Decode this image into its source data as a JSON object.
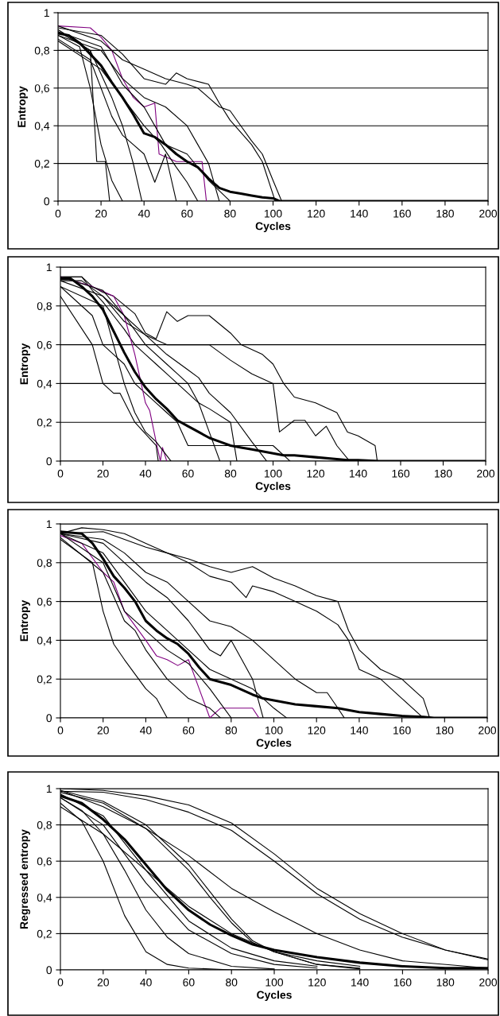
{
  "chart_data": [
    {
      "type": "line",
      "xlabel": "Cycles",
      "ylabel": "Entropy",
      "xlim": [
        0,
        200
      ],
      "ylim": [
        0,
        1
      ],
      "xticks": [
        0,
        20,
        40,
        60,
        80,
        100,
        120,
        140,
        160,
        180,
        200
      ],
      "yticks": [
        0,
        {
          "value": 0.2,
          "label": "0,2"
        },
        {
          "value": 0.4,
          "label": "0,4"
        },
        {
          "value": 0.6,
          "label": "0,6"
        },
        {
          "value": 0.8,
          "label": "0,8"
        },
        1
      ],
      "grid": "y",
      "marker": "none",
      "line_style": "solid",
      "series": [
        {
          "color": "#000000",
          "x": [
            0,
            5,
            10,
            15,
            20,
            25,
            30,
            35,
            40,
            45,
            50,
            55,
            60,
            65,
            70,
            75,
            80,
            85,
            90,
            95,
            100,
            103,
            105,
            200
          ],
          "values": [
            0.89,
            0.88,
            0.84,
            0.78,
            0.72,
            0.63,
            0.55,
            0.46,
            0.36,
            0.34,
            0.3,
            0.25,
            0.21,
            0.18,
            0.12,
            0.07,
            0.05,
            0.04,
            0.03,
            0.02,
            0.015,
            0.0,
            0,
            0
          ]
        },
        {
          "color": "#000000",
          "x": [
            0,
            15,
            18,
            22,
            24
          ],
          "values": [
            0.9,
            0.8,
            0.21,
            0.21,
            0
          ]
        },
        {
          "color": "#000000",
          "x": [
            0,
            10,
            15,
            20,
            25,
            30
          ],
          "values": [
            0.88,
            0.82,
            0.6,
            0.3,
            0.11,
            0
          ]
        },
        {
          "color": "#000000",
          "x": [
            0,
            15,
            25,
            30,
            35,
            39
          ],
          "values": [
            0.91,
            0.8,
            0.55,
            0.4,
            0.2,
            0
          ]
        },
        {
          "color": "#800080",
          "x": [
            0,
            15,
            20,
            25,
            30,
            35,
            40,
            45,
            47,
            55,
            60,
            67,
            69
          ],
          "values": [
            0.93,
            0.92,
            0.87,
            0.8,
            0.65,
            0.55,
            0.5,
            0.52,
            0.25,
            0.21,
            0.21,
            0.21,
            0
          ]
        },
        {
          "color": "#000000",
          "x": [
            0,
            20,
            30,
            40,
            50,
            60,
            65,
            70,
            75,
            80,
            85,
            90,
            95,
            100,
            104
          ],
          "values": [
            0.93,
            0.85,
            0.75,
            0.7,
            0.65,
            0.62,
            0.6,
            0.55,
            0.5,
            0.48,
            0.4,
            0.32,
            0.25,
            0.11,
            0
          ]
        },
        {
          "color": "#000000",
          "x": [
            0,
            20,
            30,
            40,
            50,
            55,
            60,
            70,
            75,
            80,
            90,
            95,
            101
          ],
          "values": [
            0.92,
            0.88,
            0.78,
            0.65,
            0.62,
            0.68,
            0.65,
            0.62,
            0.52,
            0.43,
            0.3,
            0.21,
            0
          ]
        },
        {
          "color": "#000000",
          "x": [
            0,
            20,
            30,
            40,
            50,
            60,
            65,
            70,
            75
          ],
          "values": [
            0.88,
            0.8,
            0.65,
            0.55,
            0.5,
            0.4,
            0.3,
            0.2,
            0
          ]
        },
        {
          "color": "#000000",
          "x": [
            0,
            15,
            25,
            30,
            35,
            40,
            45,
            50,
            55
          ],
          "values": [
            0.86,
            0.75,
            0.45,
            0.35,
            0.3,
            0.25,
            0.1,
            0.25,
            0
          ]
        },
        {
          "color": "#000000",
          "x": [
            0,
            20,
            30,
            40,
            50,
            60,
            70,
            80
          ],
          "values": [
            0.9,
            0.82,
            0.62,
            0.5,
            0.3,
            0.25,
            0.11,
            0
          ]
        },
        {
          "color": "#000000",
          "x": [
            0,
            20,
            30,
            40,
            48,
            55,
            60,
            65
          ],
          "values": [
            0.85,
            0.7,
            0.55,
            0.4,
            0.3,
            0.18,
            0.1,
            0
          ]
        }
      ]
    },
    {
      "type": "line",
      "xlabel": "Cycles",
      "ylabel": "Entropy",
      "xlim": [
        0,
        200
      ],
      "ylim": [
        0,
        1
      ],
      "xticks": [
        0,
        20,
        40,
        60,
        80,
        100,
        120,
        140,
        160,
        180,
        200
      ],
      "yticks": [
        0,
        {
          "value": 0.2,
          "label": "0,2"
        },
        {
          "value": 0.4,
          "label": "0,4"
        },
        {
          "value": 0.6,
          "label": "0,6"
        },
        {
          "value": 0.8,
          "label": "0,8"
        },
        1
      ],
      "grid": "y",
      "marker": "none",
      "line_style": "solid",
      "series": [
        {
          "color": "#000000",
          "x": [
            0,
            5,
            10,
            15,
            20,
            25,
            30,
            35,
            40,
            45,
            50,
            55,
            60,
            65,
            70,
            75,
            80,
            85,
            90,
            95,
            100,
            105,
            110,
            120,
            130,
            135,
            140,
            150,
            200
          ],
          "values": [
            0.94,
            0.94,
            0.9,
            0.85,
            0.78,
            0.67,
            0.56,
            0.46,
            0.38,
            0.32,
            0.27,
            0.21,
            0.18,
            0.15,
            0.12,
            0.1,
            0.08,
            0.07,
            0.06,
            0.05,
            0.04,
            0.03,
            0.03,
            0.02,
            0.01,
            0.005,
            0.005,
            0,
            0
          ]
        },
        {
          "color": "#000000",
          "x": [
            0,
            10,
            15,
            20,
            25,
            35,
            40,
            45,
            50,
            55,
            60,
            70,
            80,
            85,
            95,
            100,
            105,
            110,
            120,
            130,
            135,
            140,
            148,
            149
          ],
          "values": [
            0.95,
            0.95,
            0.9,
            0.87,
            0.85,
            0.76,
            0.66,
            0.63,
            0.77,
            0.72,
            0.75,
            0.75,
            0.66,
            0.6,
            0.55,
            0.5,
            0.4,
            0.33,
            0.3,
            0.25,
            0.15,
            0.13,
            0.08,
            0
          ]
        },
        {
          "color": "#000000",
          "x": [
            0,
            10,
            20,
            30,
            40,
            50,
            60,
            70,
            80,
            90,
            100,
            103,
            110,
            115,
            120,
            125,
            130,
            136
          ],
          "values": [
            0.93,
            0.93,
            0.85,
            0.72,
            0.65,
            0.6,
            0.6,
            0.6,
            0.52,
            0.45,
            0.4,
            0.15,
            0.21,
            0.21,
            0.13,
            0.18,
            0.08,
            0
          ]
        },
        {
          "color": "#000000",
          "x": [
            0,
            15,
            20,
            25,
            30,
            35,
            40,
            45,
            50,
            55,
            60,
            70,
            80,
            85,
            90,
            95,
            100,
            108
          ],
          "values": [
            0.9,
            0.75,
            0.6,
            0.55,
            0.5,
            0.4,
            0.35,
            0.3,
            0.25,
            0.2,
            0.08,
            0.08,
            0.08,
            0.08,
            0.08,
            0.08,
            0.08,
            0
          ]
        },
        {
          "color": "#000000",
          "x": [
            0,
            10,
            15,
            20,
            25,
            30,
            35,
            40,
            45,
            50,
            60,
            65,
            70,
            80,
            83
          ],
          "values": [
            0.95,
            0.95,
            0.88,
            0.82,
            0.75,
            0.68,
            0.6,
            0.55,
            0.5,
            0.45,
            0.35,
            0.3,
            0.27,
            0.2,
            0
          ]
        },
        {
          "color": "#800080",
          "x": [
            0,
            15,
            25,
            30,
            35,
            40,
            42,
            45,
            47,
            48,
            50
          ],
          "values": [
            0.95,
            0.9,
            0.85,
            0.75,
            0.55,
            0.3,
            0.26,
            0.1,
            0,
            0.07,
            0
          ]
        },
        {
          "color": "#000000",
          "x": [
            0,
            15,
            20,
            25,
            28,
            35,
            45,
            46
          ],
          "values": [
            0.85,
            0.6,
            0.4,
            0.35,
            0.35,
            0.2,
            0.08,
            0
          ]
        },
        {
          "color": "#000000",
          "x": [
            0,
            20,
            30,
            40,
            50,
            55,
            60,
            65,
            70,
            75
          ],
          "values": [
            0.95,
            0.88,
            0.75,
            0.6,
            0.5,
            0.45,
            0.4,
            0.3,
            0.15,
            0
          ]
        },
        {
          "color": "#000000",
          "x": [
            0,
            20,
            30,
            40,
            50,
            60,
            65,
            70,
            80,
            90,
            97
          ],
          "values": [
            0.93,
            0.85,
            0.75,
            0.65,
            0.55,
            0.47,
            0.43,
            0.35,
            0.25,
            0.1,
            0
          ]
        },
        {
          "color": "#000000",
          "x": [
            0,
            20,
            25,
            30,
            35,
            40,
            45,
            52
          ],
          "values": [
            0.9,
            0.8,
            0.6,
            0.4,
            0.25,
            0.15,
            0.1,
            0
          ]
        }
      ]
    },
    {
      "type": "line",
      "xlabel": "Cycles",
      "ylabel": "Entropy",
      "xlim": [
        0,
        200
      ],
      "ylim": [
        0,
        1
      ],
      "xticks": [
        0,
        20,
        40,
        60,
        80,
        100,
        120,
        140,
        160,
        180,
        200
      ],
      "yticks": [
        0,
        {
          "value": 0.2,
          "label": "0,2"
        },
        {
          "value": 0.4,
          "label": "0,4"
        },
        {
          "value": 0.6,
          "label": "0,6"
        },
        {
          "value": 0.8,
          "label": "0,8"
        },
        1
      ],
      "grid": "y",
      "marker": "none",
      "line_style": "solid",
      "series": [
        {
          "color": "#000000",
          "x": [
            0,
            10,
            15,
            20,
            25,
            30,
            35,
            40,
            45,
            50,
            55,
            60,
            65,
            70,
            80,
            90,
            95,
            100,
            110,
            120,
            130,
            140,
            150,
            160,
            170,
            175,
            200
          ],
          "values": [
            0.96,
            0.95,
            0.9,
            0.82,
            0.73,
            0.67,
            0.6,
            0.5,
            0.45,
            0.41,
            0.38,
            0.33,
            0.26,
            0.2,
            0.17,
            0.12,
            0.1,
            0.09,
            0.07,
            0.06,
            0.05,
            0.03,
            0.02,
            0.01,
            0.005,
            0,
            0
          ]
        },
        {
          "color": "#000000",
          "x": [
            0,
            10,
            20,
            30,
            40,
            50,
            60,
            70,
            80,
            90,
            100,
            110,
            120,
            130,
            135,
            140,
            150,
            160,
            170,
            173
          ],
          "values": [
            0.95,
            0.98,
            0.97,
            0.95,
            0.9,
            0.85,
            0.82,
            0.78,
            0.75,
            0.78,
            0.72,
            0.68,
            0.63,
            0.6,
            0.45,
            0.35,
            0.25,
            0.2,
            0.1,
            0
          ]
        },
        {
          "color": "#000000",
          "x": [
            0,
            20,
            30,
            40,
            50,
            60,
            70,
            80,
            87,
            90,
            100,
            110,
            120,
            130,
            135,
            140,
            150,
            160,
            170
          ],
          "values": [
            0.95,
            0.96,
            0.92,
            0.88,
            0.85,
            0.8,
            0.73,
            0.7,
            0.62,
            0.68,
            0.65,
            0.6,
            0.55,
            0.48,
            0.4,
            0.25,
            0.2,
            0.1,
            0
          ]
        },
        {
          "color": "#000000",
          "x": [
            0,
            20,
            30,
            40,
            50,
            60,
            70,
            80,
            90,
            100,
            110,
            120,
            125,
            130,
            133
          ],
          "values": [
            0.95,
            0.92,
            0.85,
            0.75,
            0.7,
            0.6,
            0.5,
            0.47,
            0.4,
            0.3,
            0.2,
            0.13,
            0.13,
            0.05,
            0
          ]
        },
        {
          "color": "#000000",
          "x": [
            0,
            20,
            30,
            40,
            50,
            60,
            70,
            75,
            80,
            85,
            90,
            95
          ],
          "values": [
            0.95,
            0.9,
            0.8,
            0.7,
            0.62,
            0.5,
            0.35,
            0.32,
            0.4,
            0.3,
            0.2,
            0
          ]
        },
        {
          "color": "#800080",
          "x": [
            0,
            10,
            20,
            25,
            30,
            40,
            45,
            50,
            55,
            60,
            65,
            70,
            75,
            80,
            90,
            93
          ],
          "values": [
            0.94,
            0.9,
            0.75,
            0.7,
            0.55,
            0.4,
            0.32,
            0.3,
            0.27,
            0.3,
            0.15,
            0,
            0.05,
            0.05,
            0.05,
            0
          ]
        },
        {
          "color": "#000000",
          "x": [
            0,
            15,
            20,
            25,
            30,
            40,
            45,
            50
          ],
          "values": [
            0.92,
            0.8,
            0.55,
            0.38,
            0.3,
            0.15,
            0.1,
            0
          ]
        },
        {
          "color": "#000000",
          "x": [
            0,
            20,
            30,
            40,
            50,
            60,
            70,
            80
          ],
          "values": [
            0.95,
            0.8,
            0.55,
            0.45,
            0.35,
            0.28,
            0.15,
            0
          ]
        },
        {
          "color": "#000000",
          "x": [
            0,
            20,
            30,
            40,
            50,
            60,
            70,
            80,
            90,
            100,
            106
          ],
          "values": [
            0.95,
            0.85,
            0.7,
            0.55,
            0.45,
            0.35,
            0.25,
            0.2,
            0.15,
            0.05,
            0
          ]
        },
        {
          "color": "#000000",
          "x": [
            0,
            20,
            30,
            35,
            40,
            50,
            60,
            70,
            75
          ],
          "values": [
            0.93,
            0.75,
            0.5,
            0.45,
            0.35,
            0.2,
            0.1,
            0.05,
            0
          ]
        }
      ]
    },
    {
      "type": "line",
      "xlabel": "Cycles",
      "ylabel": "Regressed entropy",
      "xlim": [
        0,
        200
      ],
      "ylim": [
        0,
        1
      ],
      "xticks": [
        0,
        20,
        40,
        60,
        80,
        100,
        120,
        140,
        160,
        180,
        200
      ],
      "yticks": [
        0,
        {
          "value": 0.2,
          "label": "0,2"
        },
        {
          "value": 0.4,
          "label": "0,4"
        },
        {
          "value": 0.6,
          "label": "0,6"
        },
        {
          "value": 0.8,
          "label": "0,8"
        },
        1
      ],
      "grid": "y",
      "marker": "none",
      "line_style": "solid",
      "series": [
        {
          "color": "#000000",
          "x": [
            0,
            10,
            20,
            30,
            40,
            50,
            60,
            70,
            80,
            90,
            100,
            120,
            140,
            160,
            180,
            200
          ],
          "values": [
            0.96,
            0.92,
            0.83,
            0.72,
            0.58,
            0.44,
            0.33,
            0.25,
            0.19,
            0.14,
            0.11,
            0.07,
            0.04,
            0.02,
            0.01,
            0.01
          ]
        },
        {
          "color": "#000000",
          "x": [
            0,
            20,
            40,
            60,
            80,
            100,
            120,
            140,
            160,
            180,
            200
          ],
          "values": [
            1.0,
            0.99,
            0.96,
            0.91,
            0.81,
            0.64,
            0.45,
            0.31,
            0.2,
            0.11,
            0.06
          ]
        },
        {
          "color": "#000000",
          "x": [
            0,
            20,
            40,
            60,
            80,
            100,
            120,
            140,
            160,
            180,
            200
          ],
          "values": [
            0.985,
            0.98,
            0.94,
            0.87,
            0.77,
            0.6,
            0.42,
            0.28,
            0.18,
            0.11,
            0.055
          ]
        },
        {
          "color": "#000000",
          "x": [
            0,
            20,
            40,
            60,
            70,
            80,
            90,
            100,
            120,
            140
          ],
          "values": [
            0.99,
            0.93,
            0.8,
            0.58,
            0.43,
            0.28,
            0.16,
            0.1,
            0.03,
            0.01
          ]
        },
        {
          "color": "#000000",
          "x": [
            0,
            20,
            40,
            60,
            70,
            80,
            90,
            100,
            120,
            140
          ],
          "values": [
            0.98,
            0.92,
            0.78,
            0.55,
            0.4,
            0.26,
            0.15,
            0.1,
            0.03,
            0.005
          ]
        },
        {
          "color": "#000000",
          "x": [
            0,
            20,
            40,
            60,
            80,
            100,
            120,
            140,
            160,
            200
          ],
          "values": [
            0.99,
            0.9,
            0.78,
            0.63,
            0.45,
            0.32,
            0.2,
            0.11,
            0.05,
            0.01
          ]
        },
        {
          "color": "#000000",
          "x": [
            0,
            10,
            20,
            30,
            40,
            50,
            60,
            80,
            100
          ],
          "values": [
            0.92,
            0.82,
            0.6,
            0.3,
            0.1,
            0.03,
            0.01,
            0,
            0
          ]
        },
        {
          "color": "#000000",
          "x": [
            0,
            10,
            20,
            30,
            40,
            50,
            60,
            80,
            100
          ],
          "values": [
            0.95,
            0.88,
            0.75,
            0.55,
            0.33,
            0.18,
            0.09,
            0.02,
            0.005
          ]
        },
        {
          "color": "#000000",
          "x": [
            0,
            20,
            40,
            60,
            80,
            100,
            120
          ],
          "values": [
            0.95,
            0.8,
            0.48,
            0.22,
            0.09,
            0.03,
            0.01
          ]
        },
        {
          "color": "#000000",
          "x": [
            0,
            20,
            40,
            60,
            80,
            100,
            120
          ],
          "values": [
            0.97,
            0.85,
            0.55,
            0.27,
            0.12,
            0.05,
            0.02
          ]
        },
        {
          "color": "#000000",
          "x": [
            0,
            20,
            40,
            60,
            80,
            100,
            120,
            140
          ],
          "values": [
            0.9,
            0.75,
            0.55,
            0.35,
            0.2,
            0.1,
            0.05,
            0.02
          ]
        }
      ]
    }
  ]
}
